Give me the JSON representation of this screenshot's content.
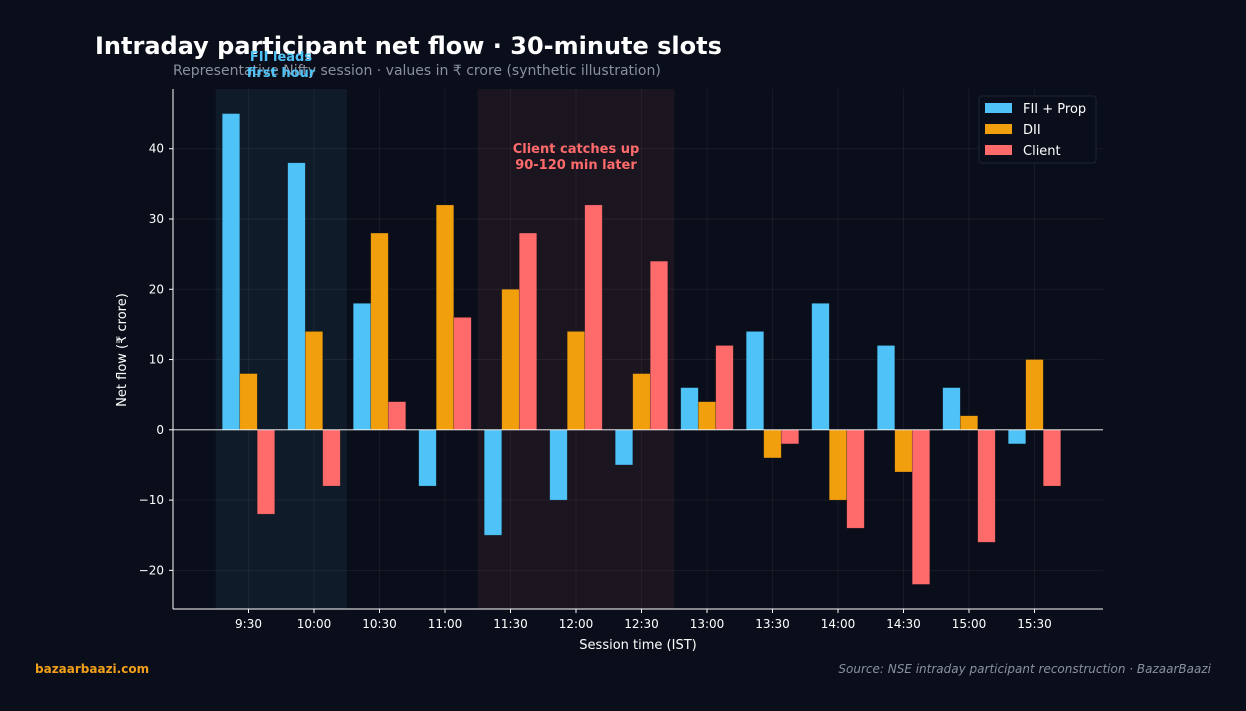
{
  "header": {
    "title": "Intraday participant net flow · 30-minute slots",
    "subtitle": "Representative Nifty session  ·  values in ₹ crore (synthetic illustration)"
  },
  "footer": {
    "brand": "bazaarbaazi.com",
    "source": "Source: NSE intraday participant reconstruction  ·  BazaarBaazi"
  },
  "annotations": {
    "fii_line1": "FII leads",
    "fii_line2": "first hour",
    "client_line1": "Client catches up",
    "client_line2": "90-120 min later"
  },
  "legend": [
    "FII + Prop",
    "DII",
    "Client"
  ],
  "chart_data": {
    "type": "bar",
    "title": "Intraday participant net flow · 30-minute slots",
    "subtitle": "Representative Nifty session  ·  values in ₹ crore (synthetic illustration)",
    "xlabel": "Session time (IST)",
    "ylabel": "Net flow (₹ crore)",
    "ylim": [
      -25.5,
      48.5
    ],
    "yticks": [
      -20,
      -10,
      0,
      10,
      20,
      30,
      40
    ],
    "categories": [
      "9:30",
      "10:00",
      "10:30",
      "11:00",
      "11:30",
      "12:00",
      "12:30",
      "13:00",
      "13:30",
      "14:00",
      "14:30",
      "15:00",
      "15:30"
    ],
    "series": [
      {
        "name": "FII + Prop",
        "color": "#4fc3f7",
        "values": [
          45,
          38,
          18,
          -8,
          -15,
          -10,
          -5,
          6,
          14,
          18,
          12,
          6,
          -2
        ]
      },
      {
        "name": "DII",
        "color": "#f29f0d",
        "values": [
          8,
          14,
          28,
          32,
          20,
          14,
          8,
          4,
          -4,
          -10,
          -6,
          2,
          10
        ]
      },
      {
        "name": "Client",
        "color": "#ff6b6b",
        "values": [
          -12,
          -8,
          4,
          16,
          28,
          32,
          24,
          12,
          -2,
          -14,
          -22,
          -16,
          -8
        ]
      }
    ],
    "highlight_bands": [
      {
        "from": "9:30",
        "to": "10:00",
        "color": "#4fc3f7"
      },
      {
        "from": "11:30",
        "to": "12:30",
        "color": "#ff6b6b"
      }
    ],
    "grid": true,
    "legend_position": "top-right"
  }
}
